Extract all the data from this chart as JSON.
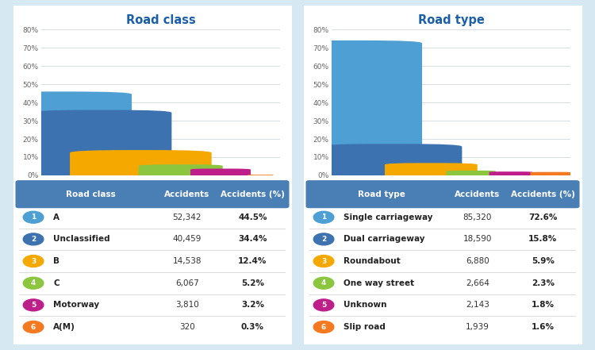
{
  "bg_color": "#d6e8f2",
  "panel_bg": "#ffffff",
  "left_title": "Road class",
  "left_categories": [
    "A",
    "Unclassified",
    "B",
    "C",
    "Motorway",
    "A(M)"
  ],
  "left_percentages": [
    44.5,
    34.4,
    12.4,
    5.2,
    3.2,
    0.3
  ],
  "left_accidents": [
    "52,342",
    "40,459",
    "14,538",
    "6,067",
    "3,810",
    "320"
  ],
  "left_accidents_pct": [
    "44.5%",
    "34.4%",
    "12.4%",
    "5.2%",
    "3.2%",
    "0.3%"
  ],
  "left_bar_colors": [
    "#4e9fd4",
    "#3c72b0",
    "#f5a800",
    "#8cc63f",
    "#be1e8a",
    "#f47920"
  ],
  "right_title": "Road type",
  "right_categories": [
    "Single carriageway",
    "Dual carriageway",
    "Roundabout",
    "One way street",
    "Unknown",
    "Slip road"
  ],
  "right_percentages": [
    72.6,
    15.8,
    5.9,
    2.3,
    1.8,
    1.6
  ],
  "right_accidents": [
    "85,320",
    "18,590",
    "6,880",
    "2,664",
    "2,143",
    "1,939"
  ],
  "right_accidents_pct": [
    "72.6%",
    "15.8%",
    "5.9%",
    "2.3%",
    "1.8%",
    "1.6%"
  ],
  "right_bar_colors": [
    "#4e9fd4",
    "#3c72b0",
    "#f5a800",
    "#8cc63f",
    "#be1e8a",
    "#f47920"
  ],
  "table_header_bg": "#4a7fb5",
  "circle_colors": [
    "#4e9fd4",
    "#3c72b0",
    "#f5a800",
    "#8cc63f",
    "#be1e8a",
    "#f47920"
  ],
  "title_color": "#1b5fa8",
  "axis_tick_color": "#666666",
  "grid_color": "#d0d8e0",
  "ytick_vals": [
    0,
    10,
    20,
    30,
    40,
    50,
    60,
    70,
    80
  ],
  "ytick_labels": [
    "0%",
    "10%",
    "20%",
    "30%",
    "40%",
    "50%",
    "60%",
    "70%",
    "80%"
  ]
}
